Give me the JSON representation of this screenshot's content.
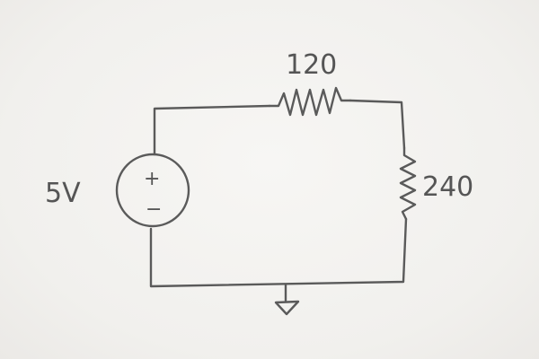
{
  "source": {
    "label": "5V",
    "plus": "+",
    "minus": "−"
  },
  "resistors": [
    {
      "label": "120"
    },
    {
      "label": "240"
    }
  ]
}
